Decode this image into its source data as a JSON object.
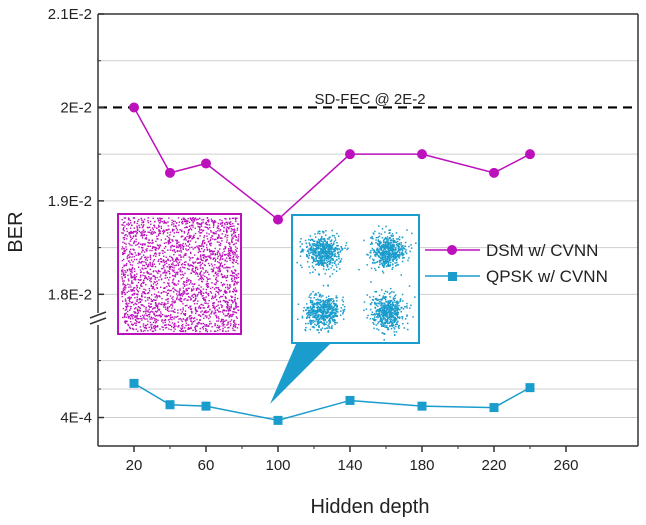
{
  "chart_data": {
    "type": "line",
    "xlabel": "Hidden depth",
    "ylabel": "BER",
    "x_ticks": [
      "20",
      "60",
      "100",
      "140",
      "180",
      "220",
      "260"
    ],
    "x_range": [
      0,
      300
    ],
    "y_axis_broken": true,
    "upper_segment": {
      "range": [
        0.0178,
        0.021
      ],
      "ticks": [
        "2.1E-2",
        "2E-2",
        "1.9E-2",
        "1.8E-2"
      ],
      "tick_values": [
        0.021,
        0.02,
        0.019,
        0.018
      ]
    },
    "lower_segment": {
      "range": [
        0.0002,
        0.00105
      ],
      "ticks": [
        "4E-4"
      ],
      "tick_values": [
        0.0004
      ]
    },
    "series": [
      {
        "name": "DSM w/ CVNN",
        "color": "#bb10bb",
        "marker": "circle",
        "segment": "upper",
        "x": [
          20,
          40,
          60,
          100,
          140,
          180,
          220,
          240
        ],
        "y": [
          0.02,
          0.0193,
          0.0194,
          0.0188,
          0.0195,
          0.0195,
          0.0193,
          0.0195
        ]
      },
      {
        "name": "QPSK w/ CVNN",
        "color": "#1a9ccc",
        "marker": "square",
        "segment": "lower",
        "x": [
          20,
          40,
          60,
          100,
          140,
          180,
          220,
          240
        ],
        "y": [
          0.00064,
          0.00049,
          0.00048,
          0.00038,
          0.00052,
          0.00048,
          0.00047,
          0.00061
        ]
      }
    ],
    "reference_line": {
      "label": "SD-FEC @ 2E-2",
      "value": 0.02,
      "style": "dashed"
    },
    "legend_position": "right",
    "grid": "horizontal"
  },
  "insets": {
    "dsm_constellation": {
      "color": "#bb10bb",
      "points_to": {
        "series": "DSM w/ CVNN",
        "x": 100
      }
    },
    "qpsk_constellation": {
      "color": "#1a9ccc",
      "points_to": {
        "series": "QPSK w/ CVNN",
        "x": 100
      }
    }
  }
}
